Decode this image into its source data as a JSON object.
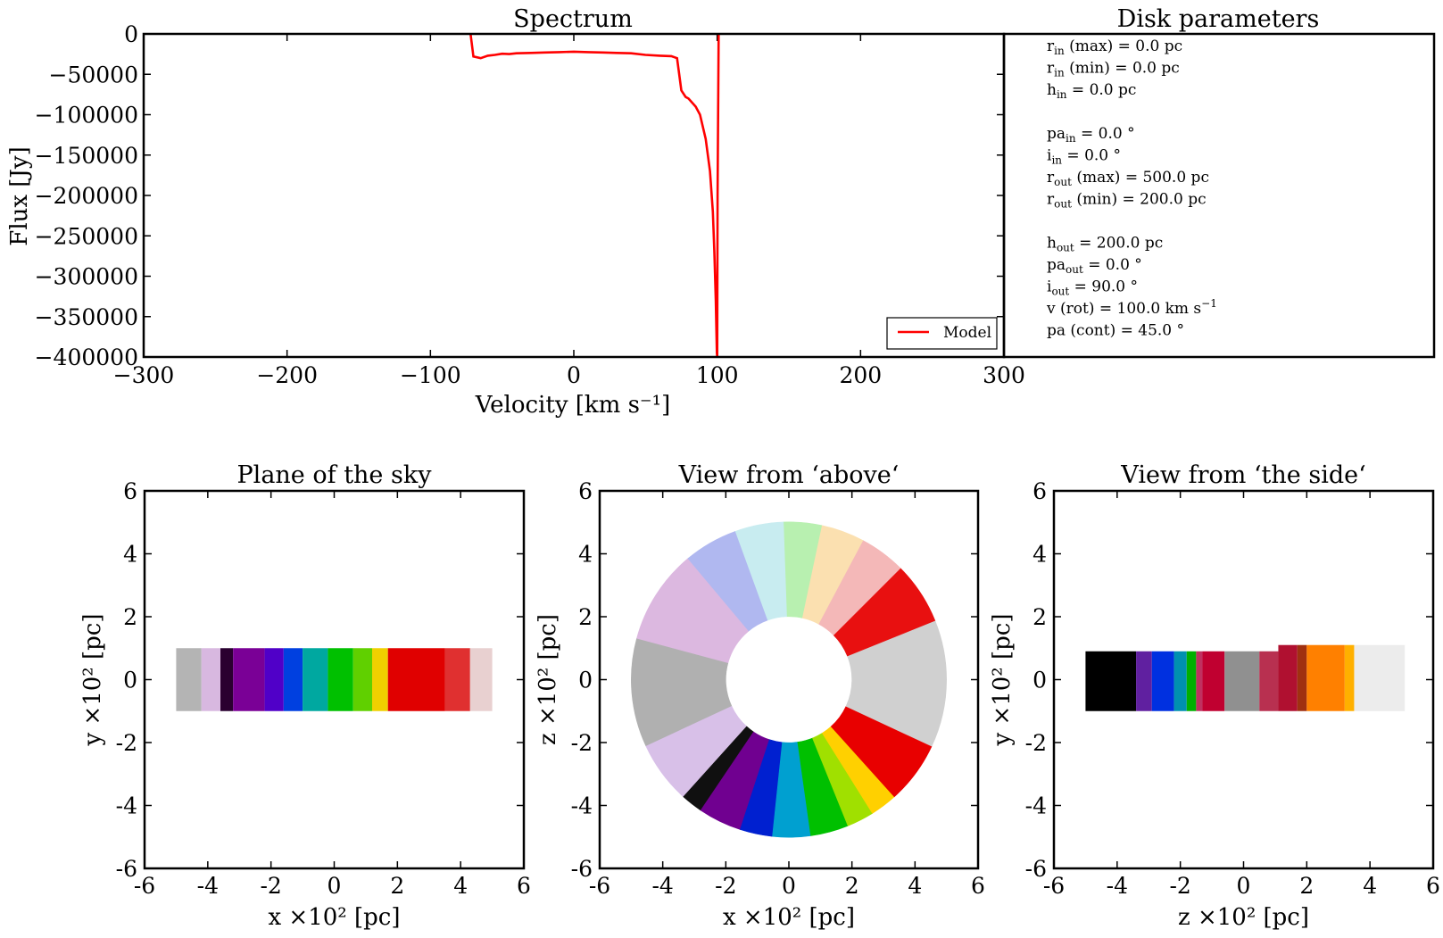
{
  "chart_data": [
    {
      "type": "line",
      "title": "Spectrum",
      "xlabel": "Velocity [km s⁻¹]",
      "ylabel": "Flux [Jy]",
      "xlim": [
        -300,
        300
      ],
      "ylim": [
        -400000,
        0
      ],
      "xticks": [
        "−300",
        "−200",
        "−100",
        "0",
        "100",
        "200",
        "300"
      ],
      "yticks": [
        "0",
        "−50000",
        "−100000",
        "−150000",
        "−200000",
        "−250000",
        "−300000",
        "−350000",
        "−400000"
      ],
      "legend": {
        "position": "lower-right",
        "label": "Model"
      },
      "series": [
        {
          "name": "Model",
          "color": "#ff0000",
          "x": [
            -72,
            -70,
            -65,
            -60,
            -55,
            -50,
            -45,
            -40,
            -30,
            -20,
            -10,
            0,
            10,
            20,
            30,
            40,
            50,
            60,
            68,
            72,
            75,
            78,
            80,
            85,
            88,
            92,
            95,
            97,
            98,
            99,
            99.8,
            100,
            100.3,
            101
          ],
          "y": [
            0,
            -28000,
            -30000,
            -27000,
            -26000,
            -24500,
            -25000,
            -24000,
            -23500,
            -23000,
            -22500,
            -22000,
            -22500,
            -23000,
            -23500,
            -24000,
            -26000,
            -27000,
            -27500,
            -30000,
            -70000,
            -78000,
            -80000,
            -90000,
            -100000,
            -130000,
            -170000,
            -220000,
            -270000,
            -330000,
            -395000,
            -400000,
            -200000,
            0
          ]
        }
      ]
    },
    {
      "type": "heatmap",
      "title": "Plane of the sky",
      "xlabel": "x ×10² [pc]",
      "ylabel": "y ×10² [pc]",
      "xlim": [
        -6,
        6
      ],
      "ylim": [
        -6,
        6
      ],
      "xticks": [
        "-6",
        "-4",
        "-2",
        "0",
        "2",
        "4",
        "6"
      ],
      "yticks": [
        "6",
        "4",
        "2",
        "0",
        "-2",
        "-4",
        "-6"
      ],
      "bands": [
        {
          "x0": -5.0,
          "x1": -4.2,
          "color": "#b4b4b4"
        },
        {
          "x0": -4.2,
          "x1": -3.6,
          "color": "#d8b8e0"
        },
        {
          "x0": -3.6,
          "x1": -3.2,
          "color": "#2a0030"
        },
        {
          "x0": -3.2,
          "x1": -2.2,
          "color": "#7a0096"
        },
        {
          "x0": -2.2,
          "x1": -1.6,
          "color": "#5000c8"
        },
        {
          "x0": -1.6,
          "x1": -1.0,
          "color": "#0040e0"
        },
        {
          "x0": -1.0,
          "x1": -0.2,
          "color": "#00a8a0"
        },
        {
          "x0": -0.2,
          "x1": 0.6,
          "color": "#00c000"
        },
        {
          "x0": 0.6,
          "x1": 1.2,
          "color": "#60d000"
        },
        {
          "x0": 1.2,
          "x1": 1.7,
          "color": "#f0d000"
        },
        {
          "x0": 1.7,
          "x1": 3.5,
          "color": "#e00000"
        },
        {
          "x0": 3.5,
          "x1": 4.3,
          "color": "#e03030"
        },
        {
          "x0": 4.3,
          "x1": 5.0,
          "color": "#e8d0d0"
        }
      ],
      "y_extent": [
        -1,
        1
      ]
    },
    {
      "type": "heatmap",
      "title": "View from ‘above‘",
      "xlabel": "x ×10² [pc]",
      "ylabel": "z ×10² [pc]",
      "xlim": [
        -6,
        6
      ],
      "ylim": [
        -6,
        6
      ],
      "xticks": [
        "-6",
        "-4",
        "-2",
        "0",
        "2",
        "4",
        "6"
      ],
      "yticks": [
        "6",
        "4",
        "2",
        "0",
        "-2",
        "-4",
        "-6"
      ],
      "r_inner": 2,
      "r_outer": 5,
      "sectors": [
        {
          "a0": 0,
          "a1": 22,
          "color": "#d0d0d0"
        },
        {
          "a0": 22,
          "a1": 45,
          "color": "#e81010"
        },
        {
          "a0": 45,
          "a1": 62,
          "color": "#f4b8b8"
        },
        {
          "a0": 62,
          "a1": 78,
          "color": "#fbe0b0"
        },
        {
          "a0": 78,
          "a1": 92,
          "color": "#b8f0b0"
        },
        {
          "a0": 92,
          "a1": 110,
          "color": "#c8ecf0"
        },
        {
          "a0": 110,
          "a1": 130,
          "color": "#b0b8f0"
        },
        {
          "a0": 130,
          "a1": 165,
          "color": "#dcb8e0"
        },
        {
          "a0": 165,
          "a1": 205,
          "color": "#b0b0b0"
        },
        {
          "a0": 205,
          "a1": 228,
          "color": "#d8c0e8"
        },
        {
          "a0": 228,
          "a1": 236,
          "color": "#101010"
        },
        {
          "a0": 236,
          "a1": 252,
          "color": "#700090"
        },
        {
          "a0": 252,
          "a1": 264,
          "color": "#0020d0"
        },
        {
          "a0": 264,
          "a1": 278,
          "color": "#00a0d0"
        },
        {
          "a0": 278,
          "a1": 292,
          "color": "#00c000"
        },
        {
          "a0": 292,
          "a1": 302,
          "color": "#a0e000"
        },
        {
          "a0": 302,
          "a1": 312,
          "color": "#ffd000"
        },
        {
          "a0": 312,
          "a1": 335,
          "color": "#e80000"
        },
        {
          "a0": 335,
          "a1": 360,
          "color": "#d0d0d0"
        }
      ]
    },
    {
      "type": "heatmap",
      "title": "View from ‘the side‘",
      "xlabel": "z ×10² [pc]",
      "ylabel": "y ×10² [pc]",
      "xlim": [
        -6,
        6
      ],
      "ylim": [
        -6,
        6
      ],
      "xticks": [
        "-6",
        "-4",
        "-2",
        "0",
        "2",
        "4",
        "6"
      ],
      "yticks": [
        "6",
        "4",
        "2",
        "0",
        "-2",
        "-4",
        "-6"
      ],
      "bands": [
        {
          "x0": -5.0,
          "x1": -3.4,
          "y0": -1,
          "y1": 0.9,
          "color": "#000000"
        },
        {
          "x0": -3.4,
          "x1": -2.9,
          "y0": -1,
          "y1": 0.9,
          "color": "#6020a0"
        },
        {
          "x0": -2.9,
          "x1": -2.2,
          "y0": -1,
          "y1": 0.9,
          "color": "#0030e0"
        },
        {
          "x0": -2.2,
          "x1": -1.8,
          "y0": -1,
          "y1": 0.9,
          "color": "#0090b0"
        },
        {
          "x0": -1.8,
          "x1": -1.5,
          "y0": -1,
          "y1": 0.9,
          "color": "#00b000"
        },
        {
          "x0": -1.5,
          "x1": -1.3,
          "y0": -1,
          "y1": 0.9,
          "color": "#c03060"
        },
        {
          "x0": -1.3,
          "x1": -0.6,
          "y0": -1,
          "y1": 0.9,
          "color": "#c00030"
        },
        {
          "x0": -0.6,
          "x1": 0.5,
          "y0": -1,
          "y1": 0.9,
          "color": "#909090"
        },
        {
          "x0": 0.5,
          "x1": 1.1,
          "y0": -1,
          "y1": 0.9,
          "color": "#b83050"
        },
        {
          "x0": 1.1,
          "x1": 1.7,
          "y0": -1,
          "y1": 1.1,
          "color": "#b01030"
        },
        {
          "x0": 1.7,
          "x1": 2.0,
          "y0": -1,
          "y1": 1.1,
          "color": "#a03010"
        },
        {
          "x0": 2.0,
          "x1": 3.2,
          "y0": -1,
          "y1": 1.1,
          "color": "#ff8000"
        },
        {
          "x0": 3.2,
          "x1": 3.5,
          "y0": -1,
          "y1": 1.1,
          "color": "#ffb000"
        },
        {
          "x0": 3.5,
          "x1": 5.1,
          "y0": -1,
          "y1": 1.1,
          "color": "#ececec"
        }
      ]
    }
  ],
  "params": {
    "title": "Disk parameters",
    "lines": [
      {
        "base": "r",
        "sub": "in",
        "rest": " (max) = 0.0  pc"
      },
      {
        "base": "r",
        "sub": "in",
        "rest": " (min) = 0.0  pc"
      },
      {
        "base": "h",
        "sub": "in",
        "rest": "  = 0.0  pc"
      },
      {
        "base": "",
        "sub": "",
        "rest": ""
      },
      {
        "base": "pa",
        "sub": "in",
        "rest": " = 0.0  °"
      },
      {
        "base": "i",
        "sub": "in",
        "rest": " = 0.0  °"
      },
      {
        "base": "r",
        "sub": "out",
        "rest": " (max) = 500.0  pc"
      },
      {
        "base": "r",
        "sub": "out",
        "rest": " (min) = 200.0  pc"
      },
      {
        "base": "",
        "sub": "",
        "rest": ""
      },
      {
        "base": "h",
        "sub": "out",
        "rest": "  = 200.0  pc"
      },
      {
        "base": "pa",
        "sub": "out",
        "rest": " = 0.0  °"
      },
      {
        "base": "i",
        "sub": "out",
        "rest": " = 90.0  °"
      },
      {
        "base": "v (rot) = 100.0  km s",
        "sub": "",
        "rest": "",
        "sup": "−1"
      },
      {
        "base": "pa  (cont) = 45.0  °",
        "sub": "",
        "rest": ""
      }
    ]
  }
}
